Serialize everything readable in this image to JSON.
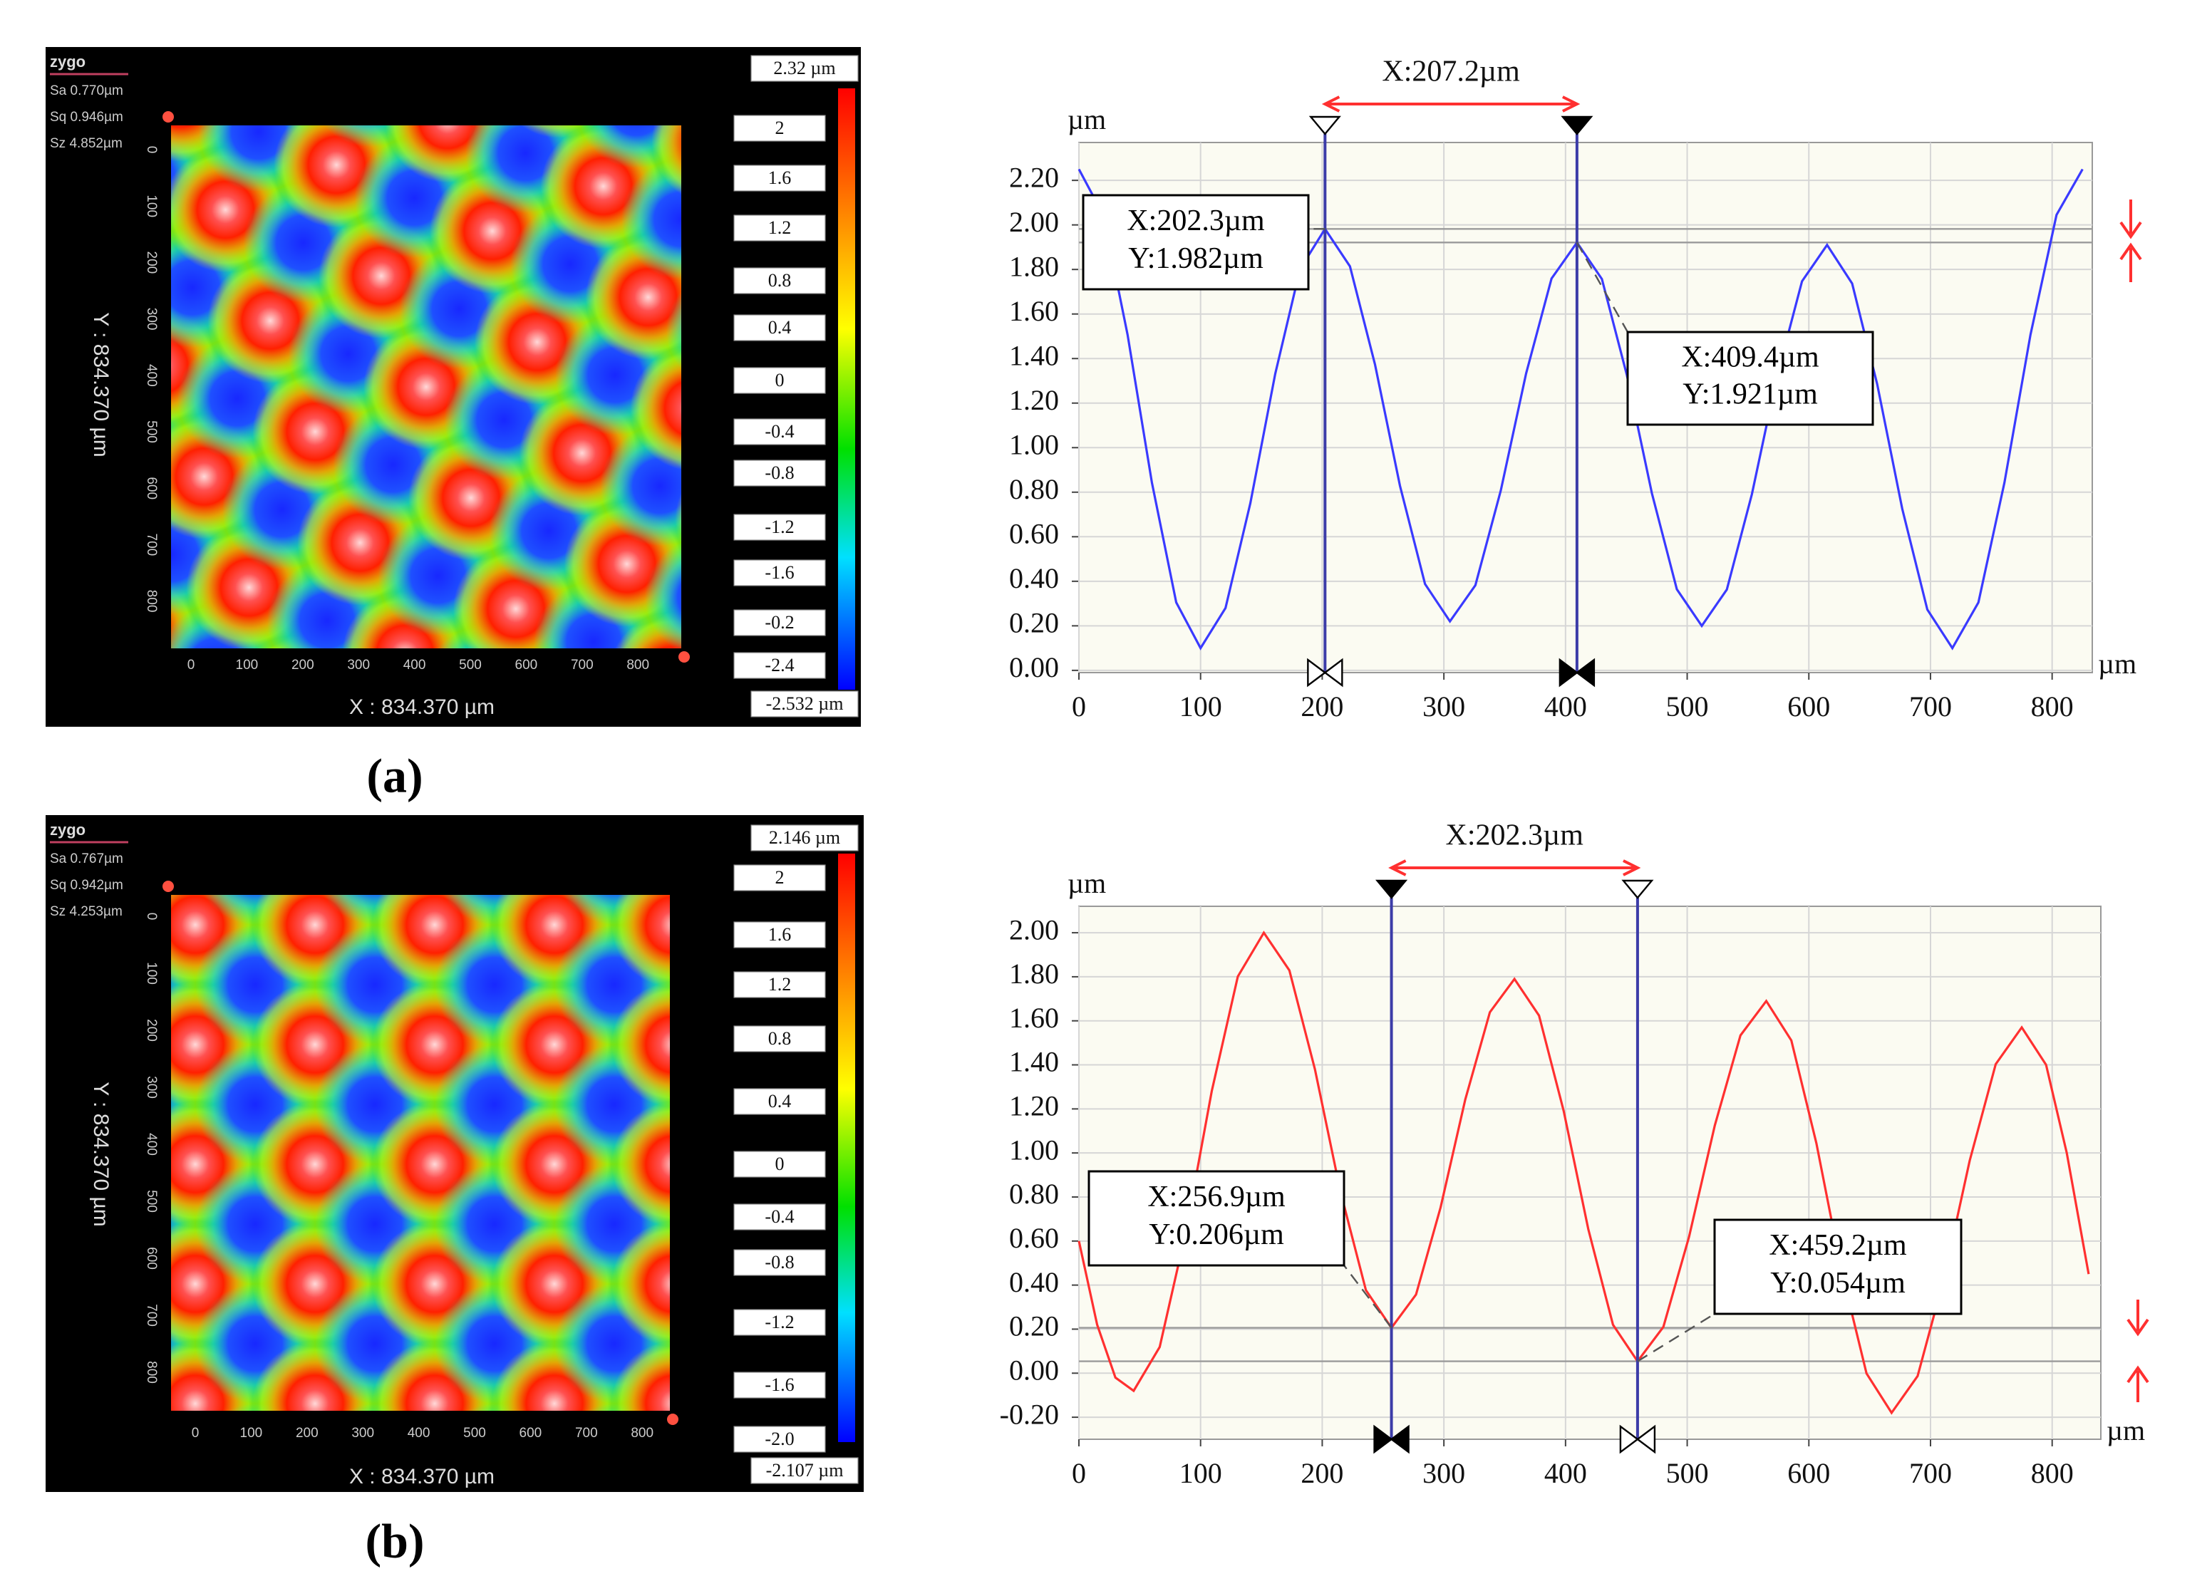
{
  "panel_labels": [
    "(a)",
    "(b)"
  ],
  "maps": [
    {
      "logo": "zygo",
      "stats": [
        "Sa 0.770µm",
        "Sq 0.946µm",
        "Sz 4.852µm"
      ],
      "y_label": "Y : 834.370 µm",
      "x_label": "X : 834.370 µm",
      "x_ticks": [
        0,
        100,
        200,
        300,
        400,
        500,
        600,
        700,
        800
      ],
      "y_ticks": [
        0,
        100,
        200,
        300,
        400,
        500,
        600,
        700,
        800
      ],
      "colorbar_labels": [
        "2.32 µm",
        "2",
        "1.6",
        "1.2",
        "0.8",
        "0.4",
        "0",
        "-0.4",
        "-0.8",
        "-1.2",
        "-1.6",
        "-0.2",
        "-2.4",
        "-2.532 µm"
      ]
    },
    {
      "logo": "zygo",
      "stats": [
        "Sa 0.767µm",
        "Sq 0.942µm",
        "Sz 4.253µm"
      ],
      "y_label": "Y : 834.370 µm",
      "x_label": "X : 834.370 µm",
      "x_ticks": [
        0,
        100,
        200,
        300,
        400,
        500,
        600,
        700,
        800
      ],
      "y_ticks": [
        0,
        100,
        200,
        300,
        400,
        500,
        600,
        700,
        800
      ],
      "colorbar_labels": [
        "2.146 µm",
        "2",
        "1.6",
        "1.2",
        "0.8",
        "0.4",
        "0",
        "-0.4",
        "-0.8",
        "-1.2",
        "-1.6",
        "-2.0",
        "-2.107 µm"
      ]
    }
  ],
  "chart_data": [
    {
      "type": "line",
      "color": "#3a3aff",
      "x_unit": "µm",
      "y_unit": "µm",
      "xlim": [
        0,
        833
      ],
      "ylim": [
        -0.01,
        2.37
      ],
      "grid": true,
      "xticks": [
        0,
        100,
        200,
        300,
        400,
        500,
        600,
        700,
        800
      ],
      "yticks": [
        {
          "value": 0,
          "label": "0.00"
        },
        {
          "value": 0.2,
          "label": "0.20"
        },
        {
          "value": 0.4,
          "label": "0.40"
        },
        {
          "value": 0.6,
          "label": "0.60"
        },
        {
          "value": 0.8,
          "label": "0.80"
        },
        {
          "value": 1,
          "label": "1.00"
        },
        {
          "value": 1.2,
          "label": "1.20"
        },
        {
          "value": 1.4,
          "label": "1.40"
        },
        {
          "value": 1.6,
          "label": "1.60"
        },
        {
          "value": 1.8,
          "label": "1.80"
        },
        {
          "value": 2,
          "label": "2.00"
        },
        {
          "value": 2.2,
          "label": "2.20"
        }
      ],
      "x": [
        0,
        20,
        40,
        60,
        80,
        100,
        120.5,
        140.9,
        161.4,
        181.8,
        202.3,
        222.8,
        243.4,
        263.9,
        284.5,
        305,
        325.9,
        346.8,
        367.6,
        388.5,
        409.4,
        429.9,
        450.4,
        471,
        491.5,
        512,
        532.6,
        553.2,
        573.8,
        594.4,
        615,
        635.6,
        656.2,
        676.8,
        697.4,
        718,
        739.4,
        760.8,
        782.2,
        803.6,
        825
      ],
      "values": [
        2.25,
        2.045,
        1.507,
        0.843,
        0.305,
        0.1,
        0.28,
        0.75,
        1.332,
        1.802,
        1.982,
        1.814,
        1.373,
        0.829,
        0.388,
        0.22,
        0.382,
        0.808,
        1.333,
        1.759,
        1.921,
        1.757,
        1.326,
        0.795,
        0.364,
        0.2,
        0.363,
        0.791,
        1.319,
        1.747,
        1.91,
        1.737,
        1.285,
        0.725,
        0.273,
        0.1,
        0.305,
        0.843,
        1.507,
        2.045,
        2.25
      ],
      "span_label": "X:207.2µm",
      "cursors": [
        {
          "x": 202.3,
          "y": 1.982,
          "x_label": "X:202.3µm",
          "y_label": "Y:1.982µm",
          "marker": "hollow"
        },
        {
          "x": 409.4,
          "y": 1.921,
          "x_label": "X:409.4µm",
          "y_label": "Y:1.921µm",
          "marker": "filled"
        }
      ]
    },
    {
      "type": "line",
      "color": "#ff3030",
      "x_unit": "µm",
      "y_unit": "µm",
      "xlim": [
        0,
        840
      ],
      "ylim": [
        -0.3,
        2.12
      ],
      "grid": true,
      "xticks": [
        0,
        100,
        200,
        300,
        400,
        500,
        600,
        700,
        800
      ],
      "yticks": [
        {
          "value": -0.2,
          "label": "-0.20"
        },
        {
          "value": 0,
          "label": "0.00"
        },
        {
          "value": 0.2,
          "label": "0.20"
        },
        {
          "value": 0.4,
          "label": "0.40"
        },
        {
          "value": 0.6,
          "label": "0.60"
        },
        {
          "value": 0.8,
          "label": "0.80"
        },
        {
          "value": 1,
          "label": "1.00"
        },
        {
          "value": 1.2,
          "label": "1.20"
        },
        {
          "value": 1.4,
          "label": "1.40"
        },
        {
          "value": 1.6,
          "label": "1.60"
        },
        {
          "value": 1.8,
          "label": "1.80"
        },
        {
          "value": 2,
          "label": "2.00"
        }
      ],
      "x": [
        0,
        15,
        30,
        45,
        66.4,
        87.8,
        109.2,
        130.6,
        152,
        173,
        194,
        214.9,
        235.9,
        256.9,
        277.1,
        297.3,
        317.6,
        337.8,
        358,
        378.2,
        398.5,
        418.7,
        439,
        459.2,
        480.4,
        501.5,
        522.7,
        543.8,
        565,
        585.6,
        606.2,
        626.8,
        647.4,
        668,
        689.4,
        710.8,
        732.2,
        753.6,
        775,
        795,
        812,
        830
      ],
      "values": [
        0.6,
        0.22,
        -0.02,
        -0.08,
        0.119,
        0.639,
        1.281,
        1.801,
        2.0,
        1.829,
        1.38,
        0.826,
        0.377,
        0.206,
        0.357,
        0.753,
        1.243,
        1.639,
        1.79,
        1.624,
        1.19,
        0.654,
        0.22,
        0.054,
        0.21,
        0.619,
        1.125,
        1.534,
        1.69,
        1.511,
        1.044,
        0.466,
        -0.001,
        -0.18,
        -0.013,
        0.425,
        0.965,
        1.403,
        1.57,
        1.4,
        1.0,
        0.45
      ],
      "span_label": "X:202.3µm",
      "cursors": [
        {
          "x": 256.9,
          "y": 0.206,
          "x_label": "X:256.9µm",
          "y_label": "Y:0.206µm",
          "marker": "filled"
        },
        {
          "x": 459.2,
          "y": 0.054,
          "x_label": "X:459.2µm",
          "y_label": "Y:0.054µm",
          "marker": "hollow"
        }
      ]
    }
  ]
}
